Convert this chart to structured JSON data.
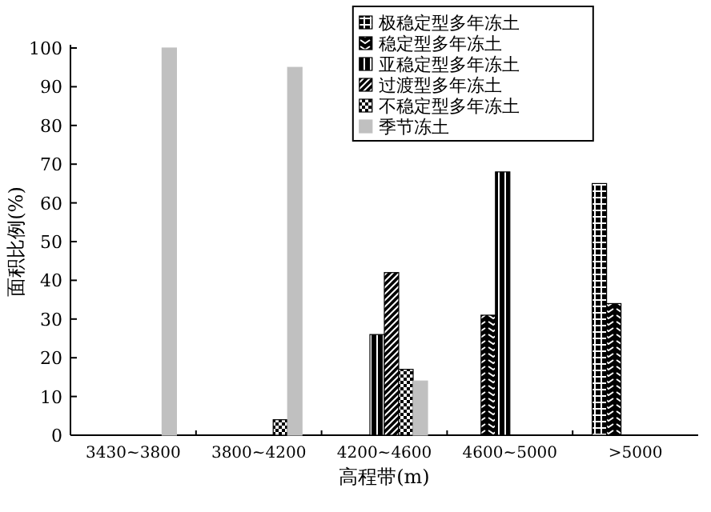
{
  "chart_data": {
    "type": "bar",
    "xlabel": "高程带(m)",
    "ylabel": "面积比例(%)",
    "categories": [
      "3430~3800",
      "3800~4200",
      "4200~4600",
      "4600~5000",
      ">5000"
    ],
    "ylim": [
      0,
      100
    ],
    "yticks": [
      0,
      10,
      20,
      30,
      40,
      50,
      60,
      70,
      80,
      90,
      100
    ],
    "legend": "top right",
    "series": [
      {
        "name": "极稳定型多年冻土",
        "color": "#000000",
        "values": [
          null,
          null,
          null,
          null,
          65
        ]
      },
      {
        "name": "稳定型多年冻土",
        "color": "#000000",
        "values": [
          null,
          null,
          null,
          31,
          34
        ]
      },
      {
        "name": "亚稳定型多年冻土",
        "color": "#000000",
        "values": [
          null,
          null,
          26,
          68,
          null
        ]
      },
      {
        "name": "过渡型多年冻土",
        "color": "#000000",
        "values": [
          null,
          null,
          42,
          null,
          null
        ]
      },
      {
        "name": "不稳定型多年冻土",
        "color": "#000000",
        "values": [
          null,
          4,
          17,
          null,
          null
        ]
      },
      {
        "name": "季节冻土",
        "color": "#c0c0c0",
        "values": [
          100,
          95,
          14,
          null,
          null
        ]
      }
    ]
  }
}
